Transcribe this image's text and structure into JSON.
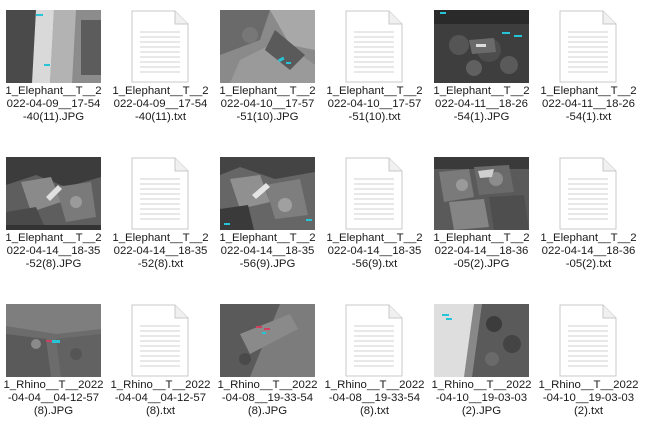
{
  "files": [
    {
      "type": "image",
      "icon": "jpg-thumbnail-icon",
      "lines": [
        "1_Elephant__T__2",
        "022-04-09__17-54",
        "-40(11).JPG"
      ]
    },
    {
      "type": "text",
      "icon": "txt-document-icon",
      "lines": [
        "1_Elephant__T__2",
        "022-04-09__17-54",
        "-40(11).txt"
      ]
    },
    {
      "type": "image",
      "icon": "jpg-thumbnail-icon",
      "lines": [
        "1_Elephant__T__2",
        "022-04-10__17-57",
        "-51(10).JPG"
      ]
    },
    {
      "type": "text",
      "icon": "txt-document-icon",
      "lines": [
        "1_Elephant__T__2",
        "022-04-10__17-57",
        "-51(10).txt"
      ]
    },
    {
      "type": "image",
      "icon": "jpg-thumbnail-icon",
      "lines": [
        "1_Elephant__T__2",
        "022-04-11__18-26",
        "-54(1).JPG"
      ]
    },
    {
      "type": "text",
      "icon": "txt-document-icon",
      "lines": [
        "1_Elephant__T__2",
        "022-04-11__18-26",
        "-54(1).txt"
      ]
    },
    {
      "type": "image",
      "icon": "jpg-thumbnail-icon",
      "lines": [
        "1_Elephant__T__2",
        "022-04-14__18-35",
        "-52(8).JPG"
      ]
    },
    {
      "type": "text",
      "icon": "txt-document-icon",
      "lines": [
        "1_Elephant__T__2",
        "022-04-14__18-35",
        "-52(8).txt"
      ]
    },
    {
      "type": "image",
      "icon": "jpg-thumbnail-icon",
      "lines": [
        "1_Elephant__T__2",
        "022-04-14__18-35",
        "-56(9).JPG"
      ]
    },
    {
      "type": "text",
      "icon": "txt-document-icon",
      "lines": [
        "1_Elephant__T__2",
        "022-04-14__18-35",
        "-56(9).txt"
      ]
    },
    {
      "type": "image",
      "icon": "jpg-thumbnail-icon",
      "lines": [
        "1_Elephant__T__2",
        "022-04-14__18-36",
        "-05(2).JPG"
      ]
    },
    {
      "type": "text",
      "icon": "txt-document-icon",
      "lines": [
        "1_Elephant__T__2",
        "022-04-14__18-36",
        "-05(2).txt"
      ]
    },
    {
      "type": "image",
      "icon": "jpg-thumbnail-icon",
      "lines": [
        "1_Rhino__T__2022",
        "-04-04__04-12-57",
        "(8).JPG"
      ]
    },
    {
      "type": "text",
      "icon": "txt-document-icon",
      "lines": [
        "1_Rhino__T__2022",
        "-04-04__04-12-57",
        "(8).txt"
      ]
    },
    {
      "type": "image",
      "icon": "jpg-thumbnail-icon",
      "lines": [
        "1_Rhino__T__2022",
        "-04-08__19-33-54",
        "(8).JPG"
      ]
    },
    {
      "type": "text",
      "icon": "txt-document-icon",
      "lines": [
        "1_Rhino__T__2022",
        "-04-08__19-33-54",
        "(8).txt"
      ]
    },
    {
      "type": "image",
      "icon": "jpg-thumbnail-icon",
      "lines": [
        "1_Rhino__T__2022",
        "-04-10__19-03-03",
        "(2).JPG"
      ]
    },
    {
      "type": "text",
      "icon": "txt-document-icon",
      "lines": [
        "1_Rhino__T__2022",
        "-04-10__19-03-03",
        "(2).txt"
      ]
    }
  ]
}
